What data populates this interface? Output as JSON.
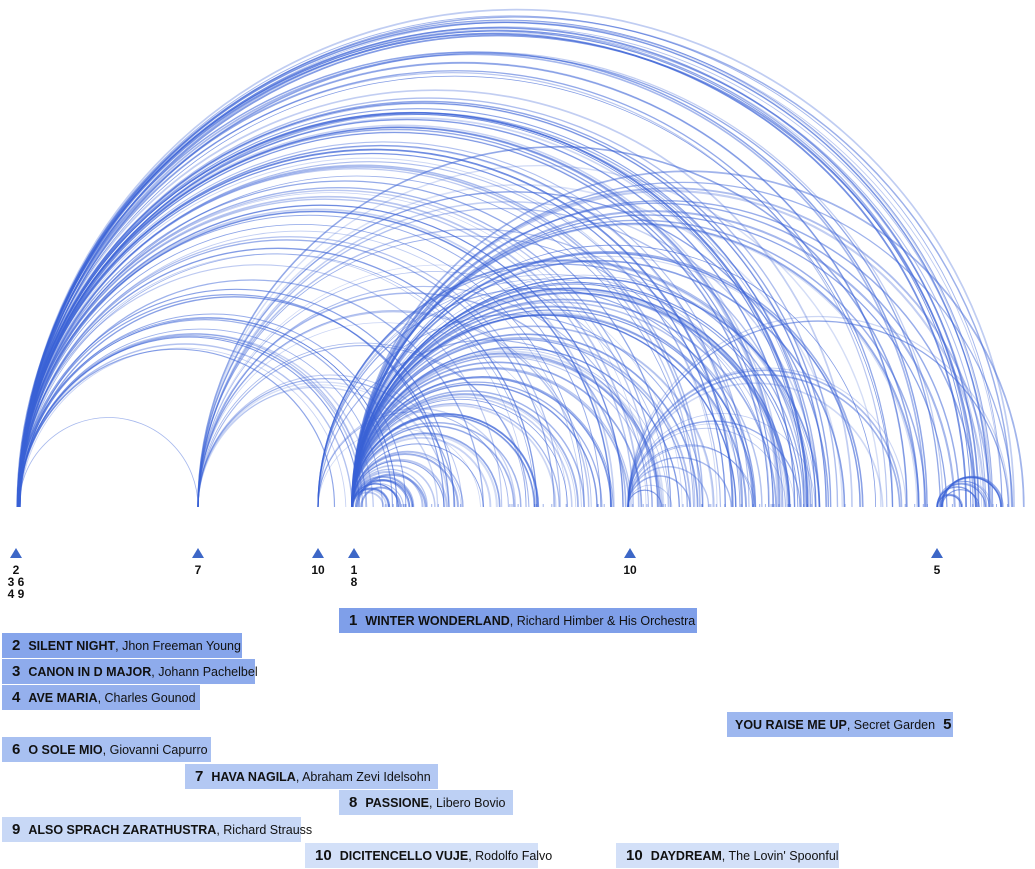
{
  "markers": [
    {
      "id": "m-2-3-4-6-9",
      "label": "2\n3 6\n4 9"
    },
    {
      "id": "m-7",
      "label": "7"
    },
    {
      "id": "m-10a",
      "label": "10"
    },
    {
      "id": "m-1-8",
      "label": "1\n8"
    },
    {
      "id": "m-10b",
      "label": "10"
    },
    {
      "id": "m-5",
      "label": "5"
    }
  ],
  "songs": [
    {
      "rank": "1",
      "title": "WINTER WONDERLAND",
      "artist": ", Richard Himber & His Orchestra",
      "color": "#7f9fe9"
    },
    {
      "rank": "2",
      "title": "SILENT NIGHT",
      "artist": ", Jhon Freeman Young",
      "color": "#86a5eb"
    },
    {
      "rank": "3",
      "title": "CANON IN D MAJOR",
      "artist": ", Johann Pachelbel",
      "color": "#8eabec"
    },
    {
      "rank": "4",
      "title": "AVE MARIA",
      "artist": ", Charles Gounod",
      "color": "#95b0ed"
    },
    {
      "rank": "5",
      "title": "YOU RAISE ME UP",
      "artist": ", Secret Garden",
      "color": "#9db7ef"
    },
    {
      "rank": "6",
      "title": "O SOLE MIO",
      "artist": ", Giovanni Capurro",
      "color": "#a8c0f1"
    },
    {
      "rank": "7",
      "title": "HAVA NAGILA",
      "artist": ", Abraham Zevi Idelsohn",
      "color": "#b3c8f3"
    },
    {
      "rank": "8",
      "title": "PASSIONE",
      "artist": ", Libero Bovio",
      "color": "#bdd0f4"
    },
    {
      "rank": "9",
      "title": "ALSO SPRACH ZARATHUSTRA",
      "artist": ", Richard Strauss",
      "color": "#c8d8f6"
    },
    {
      "rank": "10",
      "title": "DICITENCELLO VUJE",
      "artist": ", Rodolfo Falvo",
      "color": "#d3e0f8"
    },
    {
      "rank": "10",
      "title": "DAYDREAM",
      "artist": ", The Lovin' Spoonful",
      "color": "#d3e0f8"
    }
  ],
  "colors": {
    "arc": "#3a62d6",
    "marker": "#3d67c7"
  }
}
